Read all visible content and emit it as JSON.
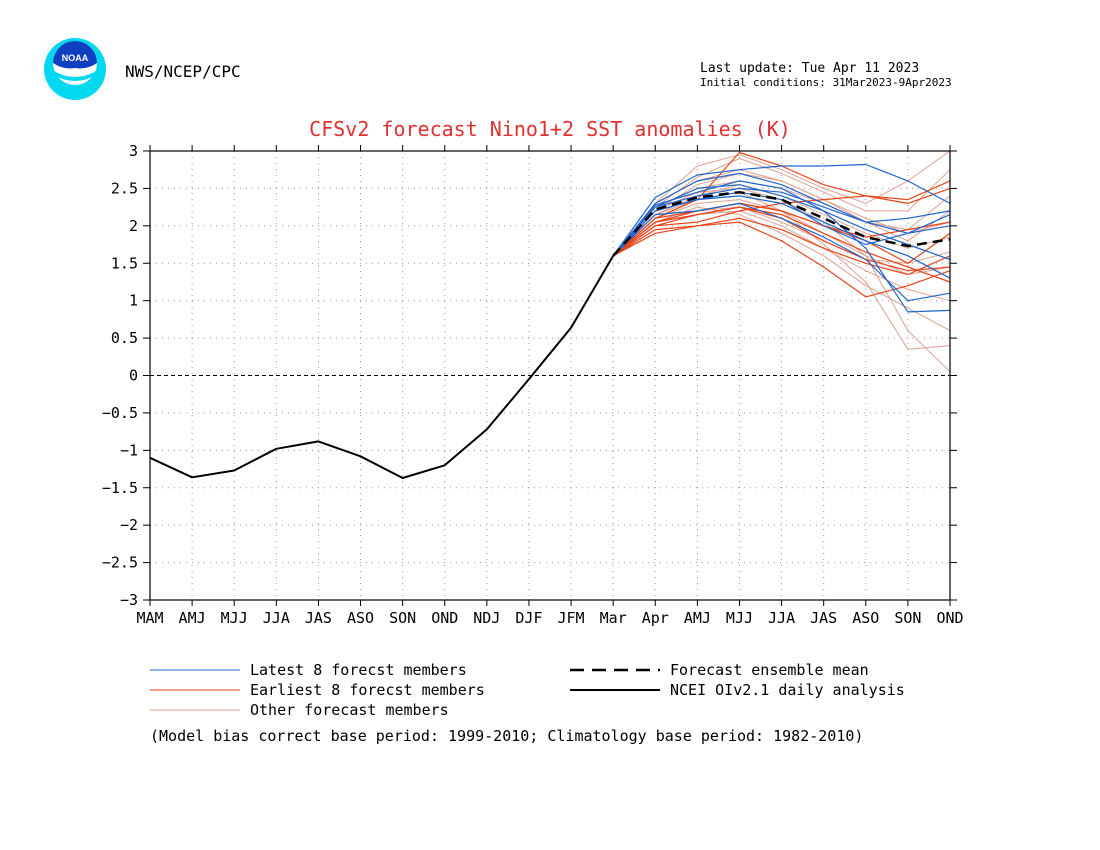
{
  "header": {
    "org": "NWS/NCEP/CPC",
    "last_update": "Last update: Tue Apr 11 2023",
    "initial_conditions": "Initial conditions: 31Mar2023-9Apr2023",
    "logo_text": "NOAA"
  },
  "colors": {
    "title": "#e03030",
    "latest": "#1f66cc",
    "earliest": "#e8451a",
    "other": "#e0a090",
    "observed": "#000000",
    "mean": "#000000",
    "grid": "#9a9a9a",
    "logo_blue": "#1040c0",
    "logo_cyan": "#00d8f0"
  },
  "chart_data": {
    "type": "line",
    "title": "CFSv2 forecast Nino1+2 SST anomalies (K)",
    "categories": [
      "MAM",
      "AMJ",
      "MJJ",
      "JJA",
      "JAS",
      "ASO",
      "SON",
      "OND",
      "NDJ",
      "DJF",
      "JFM",
      "Mar",
      "Apr",
      "AMJ",
      "MJJ",
      "JJA",
      "JAS",
      "ASO",
      "SON",
      "OND"
    ],
    "ylim": [
      -3,
      3
    ],
    "yticks": [
      "3",
      "2.5",
      "2",
      "1.5",
      "1",
      "0.5",
      "0",
      "−0.5",
      "−1",
      "−1.5",
      "−2",
      "−2.5",
      "−3"
    ],
    "grid": true,
    "zero_line": true,
    "observed": {
      "name": "NCEI OIv2.1 daily analysis",
      "values": [
        -1.1,
        -1.36,
        -1.27,
        -0.98,
        -0.88,
        -1.08,
        -1.37,
        -1.2,
        -0.72,
        -0.05,
        0.64,
        1.6
      ]
    },
    "ensemble_mean": {
      "name": "Forecast ensemble mean",
      "values": [
        1.6,
        2.22,
        2.38,
        2.45,
        2.35,
        2.1,
        1.85,
        1.73,
        1.82
      ]
    },
    "forecast_start_index": 11,
    "latest_members": [
      [
        1.6,
        2.38,
        2.68,
        2.75,
        2.8,
        2.8,
        2.82,
        2.6,
        2.3
      ],
      [
        1.6,
        2.3,
        2.6,
        2.7,
        2.55,
        2.3,
        2.05,
        1.9,
        2.0
      ],
      [
        1.6,
        2.25,
        2.5,
        2.55,
        2.4,
        2.2,
        1.95,
        1.75,
        1.55
      ],
      [
        1.6,
        2.2,
        2.35,
        2.4,
        2.3,
        2.05,
        1.8,
        1.6,
        1.3
      ],
      [
        1.6,
        2.15,
        2.2,
        2.3,
        2.1,
        1.85,
        1.55,
        1.0,
        1.1
      ],
      [
        1.6,
        2.28,
        2.45,
        2.6,
        2.5,
        2.2,
        1.7,
        0.85,
        0.87
      ],
      [
        1.6,
        2.2,
        2.35,
        2.45,
        2.35,
        2.0,
        1.75,
        1.9,
        2.15
      ],
      [
        1.6,
        2.25,
        2.4,
        2.5,
        2.45,
        2.25,
        2.05,
        2.1,
        2.2
      ]
    ],
    "earliest_members": [
      [
        1.6,
        2.1,
        2.35,
        2.98,
        2.8,
        2.55,
        2.4,
        2.3,
        2.5
      ],
      [
        1.6,
        2.05,
        2.2,
        2.3,
        2.2,
        2.0,
        1.8,
        1.5,
        1.9
      ],
      [
        1.6,
        1.95,
        2.0,
        2.05,
        1.8,
        1.45,
        1.05,
        1.2,
        1.4
      ],
      [
        1.6,
        2.0,
        2.15,
        2.25,
        2.1,
        1.8,
        1.55,
        1.4,
        1.45
      ],
      [
        1.6,
        2.1,
        2.2,
        2.3,
        2.2,
        2.0,
        1.85,
        1.95,
        2.05
      ],
      [
        1.6,
        2.0,
        2.05,
        2.2,
        2.3,
        2.35,
        2.4,
        2.35,
        2.6
      ],
      [
        1.6,
        1.9,
        2.0,
        2.1,
        1.95,
        1.7,
        1.5,
        1.35,
        1.6
      ],
      [
        1.6,
        2.05,
        2.15,
        2.25,
        2.15,
        1.9,
        1.65,
        1.45,
        1.25
      ]
    ],
    "other_members": [
      [
        1.6,
        2.3,
        2.8,
        2.95,
        2.75,
        2.5,
        2.3,
        2.6,
        3.0
      ],
      [
        1.6,
        2.25,
        2.65,
        2.9,
        2.7,
        2.45,
        2.2,
        2.2,
        2.75
      ],
      [
        1.6,
        2.2,
        2.55,
        2.7,
        2.6,
        2.35,
        2.1,
        1.9,
        2.05
      ],
      [
        1.6,
        2.15,
        2.4,
        2.55,
        2.4,
        2.15,
        1.9,
        1.7,
        1.85
      ],
      [
        1.6,
        2.1,
        2.3,
        2.35,
        2.2,
        1.9,
        1.6,
        1.35,
        1.45
      ],
      [
        1.6,
        2.05,
        2.25,
        2.15,
        1.9,
        1.6,
        1.2,
        0.9,
        0.6
      ],
      [
        1.6,
        2.15,
        2.35,
        2.45,
        2.2,
        1.75,
        1.25,
        0.35,
        0.4
      ],
      [
        1.6,
        2.2,
        2.45,
        2.5,
        2.35,
        2.05,
        1.6,
        0.6,
        0.05
      ],
      [
        1.6,
        2.25,
        2.5,
        2.6,
        2.5,
        2.3,
        2.05,
        1.8,
        2.2
      ],
      [
        1.6,
        2.1,
        2.2,
        2.25,
        2.05,
        1.8,
        1.55,
        1.5,
        1.65
      ],
      [
        1.6,
        2.3,
        2.6,
        2.75,
        2.6,
        2.35,
        2.05,
        1.95,
        2.4
      ],
      [
        1.6,
        2.05,
        2.15,
        2.2,
        2.0,
        1.7,
        1.4,
        1.15,
        1.0
      ]
    ],
    "legend": [
      {
        "label": "Latest 8 forecst members",
        "style": "latest"
      },
      {
        "label": "Earliest 8 forecst members",
        "style": "earliest"
      },
      {
        "label": "Other forecast members",
        "style": "other"
      },
      {
        "label": "Forecast ensemble mean",
        "style": "mean"
      },
      {
        "label": "NCEI OIv2.1 daily analysis",
        "style": "observed"
      }
    ],
    "footnote": "(Model bias correct base period: 1999-2010; Climatology base period: 1982-2010)"
  }
}
